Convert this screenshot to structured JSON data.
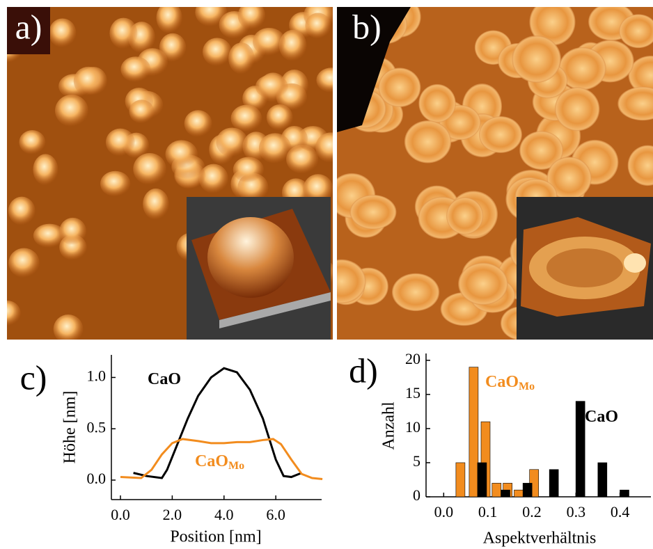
{
  "images": [
    {
      "label": "a)"
    },
    {
      "label": "b)"
    }
  ],
  "chart_data": [
    {
      "type": "line",
      "title": "c)",
      "x_label": "Position [nm]",
      "y_label": "Höhe [nm]",
      "xlim": [
        -0.35,
        7.77
      ],
      "ylim": [
        -0.19,
        1.22
      ],
      "xticks": [
        {
          "value": 0,
          "label": "0.0"
        },
        {
          "value": 2,
          "label": "2.0"
        },
        {
          "value": 4,
          "label": "4.0"
        },
        {
          "value": 6,
          "label": "6.0"
        }
      ],
      "yticks": [
        {
          "value": 0,
          "label": "0.0"
        },
        {
          "value": 0.5,
          "label": "0.5"
        },
        {
          "value": 1,
          "label": "1.0"
        }
      ],
      "series": [
        {
          "name": "CaO",
          "color": "#000000",
          "x": [
            0.5,
            1.0,
            1.6,
            1.8,
            2.2,
            2.6,
            3.0,
            3.5,
            4.0,
            4.5,
            5.0,
            5.5,
            6.0,
            6.3,
            6.6,
            7.0
          ],
          "values": [
            0.07,
            0.04,
            0.02,
            0.1,
            0.35,
            0.6,
            0.82,
            1.0,
            1.09,
            1.05,
            0.88,
            0.6,
            0.2,
            0.04,
            0.03,
            0.07
          ]
        },
        {
          "name": "CaO",
          "subscript": "Mo",
          "color": "#f28c1e",
          "x": [
            0,
            0.8,
            1.2,
            1.6,
            2.0,
            2.4,
            3.0,
            3.5,
            4.0,
            4.5,
            5.0,
            5.5,
            5.9,
            6.2,
            6.6,
            7.0,
            7.4,
            7.8
          ],
          "values": [
            0.03,
            0.02,
            0.1,
            0.25,
            0.36,
            0.4,
            0.38,
            0.36,
            0.36,
            0.37,
            0.37,
            0.39,
            0.4,
            0.35,
            0.2,
            0.06,
            0.02,
            0.01
          ]
        }
      ]
    },
    {
      "type": "bar",
      "title": "d)",
      "x_label": "Aspektverhältnis",
      "y_label": "Anzahl",
      "xlim": [
        -0.04,
        0.47
      ],
      "ylim": [
        0,
        21
      ],
      "xticks": [
        {
          "value": 0,
          "label": "0.0"
        },
        {
          "value": 0.1,
          "label": "0.1"
        },
        {
          "value": 0.2,
          "label": "0.2"
        },
        {
          "value": 0.3,
          "label": "0.3"
        },
        {
          "value": 0.4,
          "label": "0.4"
        }
      ],
      "yticks": [
        0,
        5,
        10,
        15,
        20
      ],
      "series": [
        {
          "name": "CaO",
          "subscript": "Mo",
          "color": "#f28c1e",
          "x": [
            0.038,
            0.068,
            0.095,
            0.12,
            0.145,
            0.17,
            0.205
          ],
          "values": [
            5,
            19,
            11,
            2,
            2,
            1,
            4
          ]
        },
        {
          "name": "CaO",
          "color": "#000000",
          "x": [
            0.087,
            0.14,
            0.19,
            0.25,
            0.31,
            0.36,
            0.41
          ],
          "values": [
            5,
            1,
            2,
            4,
            14,
            5,
            1
          ]
        }
      ]
    }
  ]
}
